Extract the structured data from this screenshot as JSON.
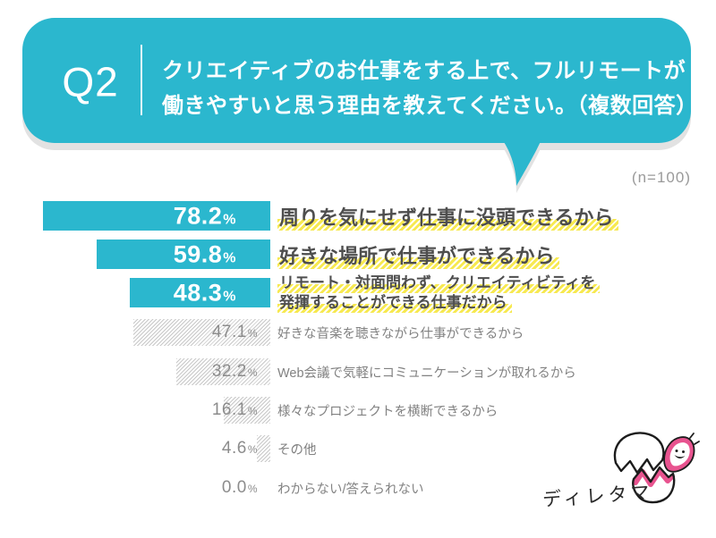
{
  "header": {
    "q_label": "Q2",
    "question_line1": "クリエイティブのお仕事をする上で、フルリモートが",
    "question_line2": "働きやすいと思う理由を教えてください。（複数回答）",
    "sample_size": "(n=100)"
  },
  "colors": {
    "accent_cyan": "#2bb7ce",
    "bubble_shadow": "#e2e2e2",
    "highlight_yellow": "#f7e950",
    "hatch_gray": "#c8c8c8",
    "label_dark": "#4e4e4e",
    "label_gray": "#828282",
    "mascot_pink": "#e8538f"
  },
  "chart_data": {
    "type": "bar",
    "orientation": "horizontal",
    "unit": "%",
    "sample_size": 100,
    "xlim": [
      0,
      93
    ],
    "grid": false,
    "legend": false,
    "categories": [
      "周りを気にせず仕事に没頭できるから",
      "好きな場所で仕事ができるから",
      "リモート・対面問わず、クリエイティビティを発揮することができる仕事だから",
      "好きな音楽を聴きながら仕事ができるから",
      "Web会議で気軽にコミュニケーションが取れるから",
      "様々なプロジェクトを横断できるから",
      "その他",
      "わからない/答えられない"
    ],
    "values": [
      78.2,
      59.8,
      48.3,
      47.1,
      32.2,
      16.1,
      4.6,
      0.0
    ],
    "emphasized": [
      true,
      true,
      true,
      false,
      false,
      false,
      false,
      false
    ]
  },
  "rows": [
    {
      "pct": "78.2",
      "label": "周りを気にせず仕事に没頭できるから"
    },
    {
      "pct": "59.8",
      "label": "好きな場所で仕事ができるから"
    },
    {
      "pct": "48.3",
      "label_line1": "リモート・対面問わず、クリエイティビティを",
      "label_line2": "発揮することができる仕事だから"
    },
    {
      "pct": "47.1",
      "label": "好きな音楽を聴きながら仕事ができるから"
    },
    {
      "pct": "32.2",
      "label": "Web会議で気軽にコミュニケーションが取れるから"
    },
    {
      "pct": "16.1",
      "label": "様々なプロジェクトを横断できるから"
    },
    {
      "pct": "4.6",
      "label": "その他"
    },
    {
      "pct": "0.0",
      "label": "わからない/答えられない"
    }
  ],
  "mascot": {
    "name": "ディレタマ"
  }
}
